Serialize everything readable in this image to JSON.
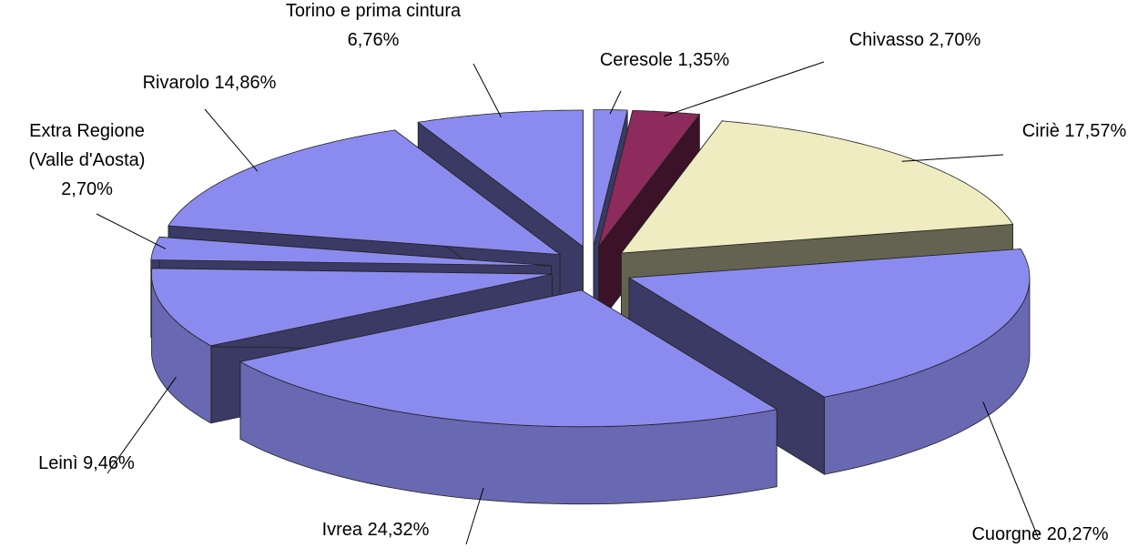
{
  "chart_data": {
    "type": "pie",
    "categories": [
      "Ceresole",
      "Chivasso",
      "Ciriè",
      "Cuorgne",
      "Ivrea",
      "Leinì",
      "Extra Regione (Valle d'Aosta)",
      "Rivarolo",
      "Torino e prima cintura"
    ],
    "values": [
      1.35,
      2.7,
      17.57,
      20.27,
      24.32,
      9.46,
      2.7,
      14.86,
      6.76
    ],
    "value_labels": [
      "1,35%",
      "2,70%",
      "17,57%",
      "20,27%",
      "24,32%",
      "9,46%",
      "2,70%",
      "14,86%",
      "6,76%"
    ],
    "colors": [
      "#8b8bef",
      "#8c2b5c",
      "#eeecc0",
      "#8b8bef",
      "#8b8bef",
      "#8b8bef",
      "#8b8bef",
      "#8b8bef",
      "#8b8bef"
    ]
  }
}
